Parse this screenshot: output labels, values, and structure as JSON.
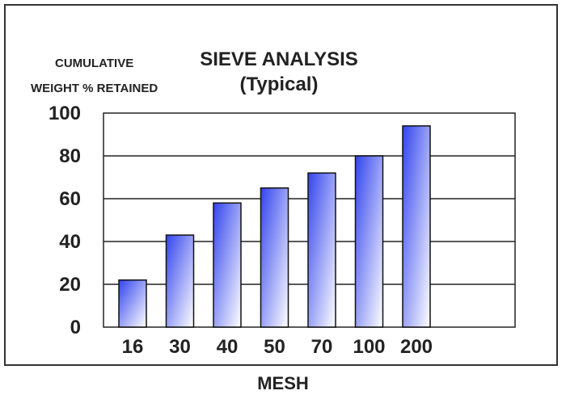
{
  "chart_data": {
    "type": "bar",
    "title": "SIEVE ANALYSIS",
    "subtitle": "(Typical)",
    "ylabel_lines": [
      "CUMULATIVE",
      "WEIGHT % RETAINED"
    ],
    "xlabel": "MESH",
    "categories": [
      "16",
      "30",
      "40",
      "50",
      "70",
      "100",
      "200"
    ],
    "values": [
      22,
      43,
      58,
      65,
      72,
      80,
      94
    ],
    "ylim": [
      0,
      100
    ],
    "yticks": [
      0,
      20,
      40,
      60,
      80,
      100
    ],
    "grid": true,
    "bar_gradient": [
      "#3344ee",
      "#ffffff"
    ]
  }
}
